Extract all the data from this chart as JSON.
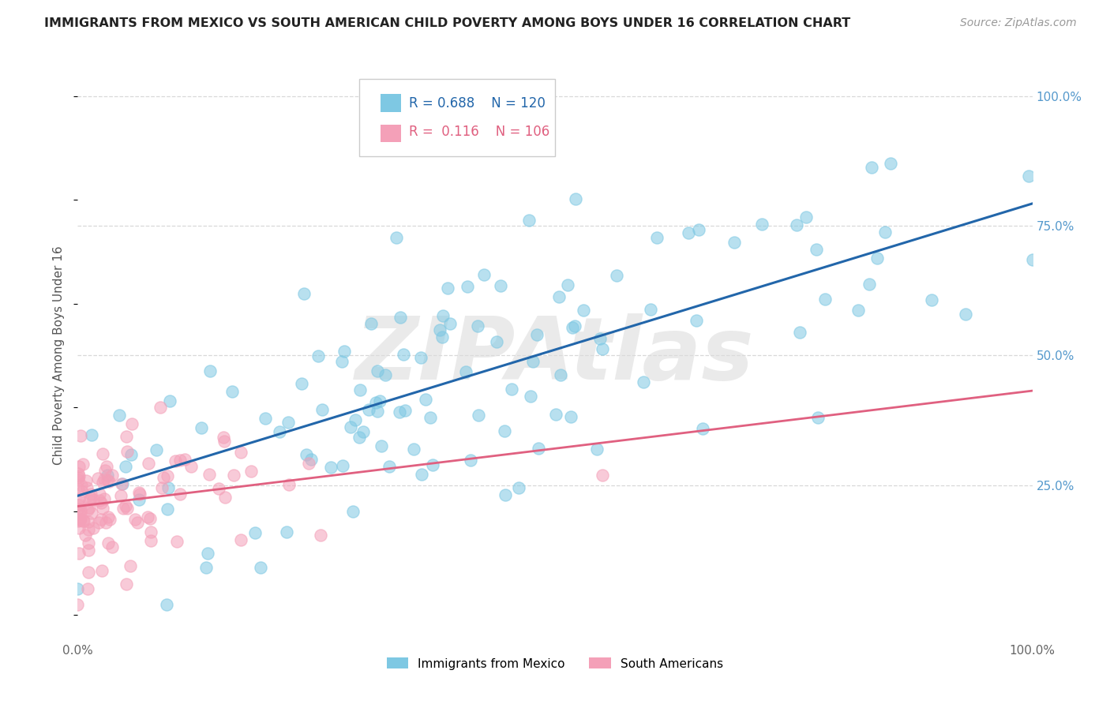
{
  "title": "IMMIGRANTS FROM MEXICO VS SOUTH AMERICAN CHILD POVERTY AMONG BOYS UNDER 16 CORRELATION CHART",
  "source": "Source: ZipAtlas.com",
  "ylabel": "Child Poverty Among Boys Under 16",
  "watermark": "ZIPAtlas",
  "blue_label": "Immigrants from Mexico",
  "pink_label": "South Americans",
  "blue_R": 0.688,
  "blue_N": 120,
  "pink_R": 0.116,
  "pink_N": 106,
  "blue_color": "#7ec8e3",
  "pink_color": "#f4a0b8",
  "blue_line_color": "#2266aa",
  "pink_line_color": "#e06080",
  "xlim": [
    0,
    1
  ],
  "ylim": [
    -0.05,
    1.05
  ],
  "background_color": "#ffffff",
  "grid_color": "#d8d8d8"
}
